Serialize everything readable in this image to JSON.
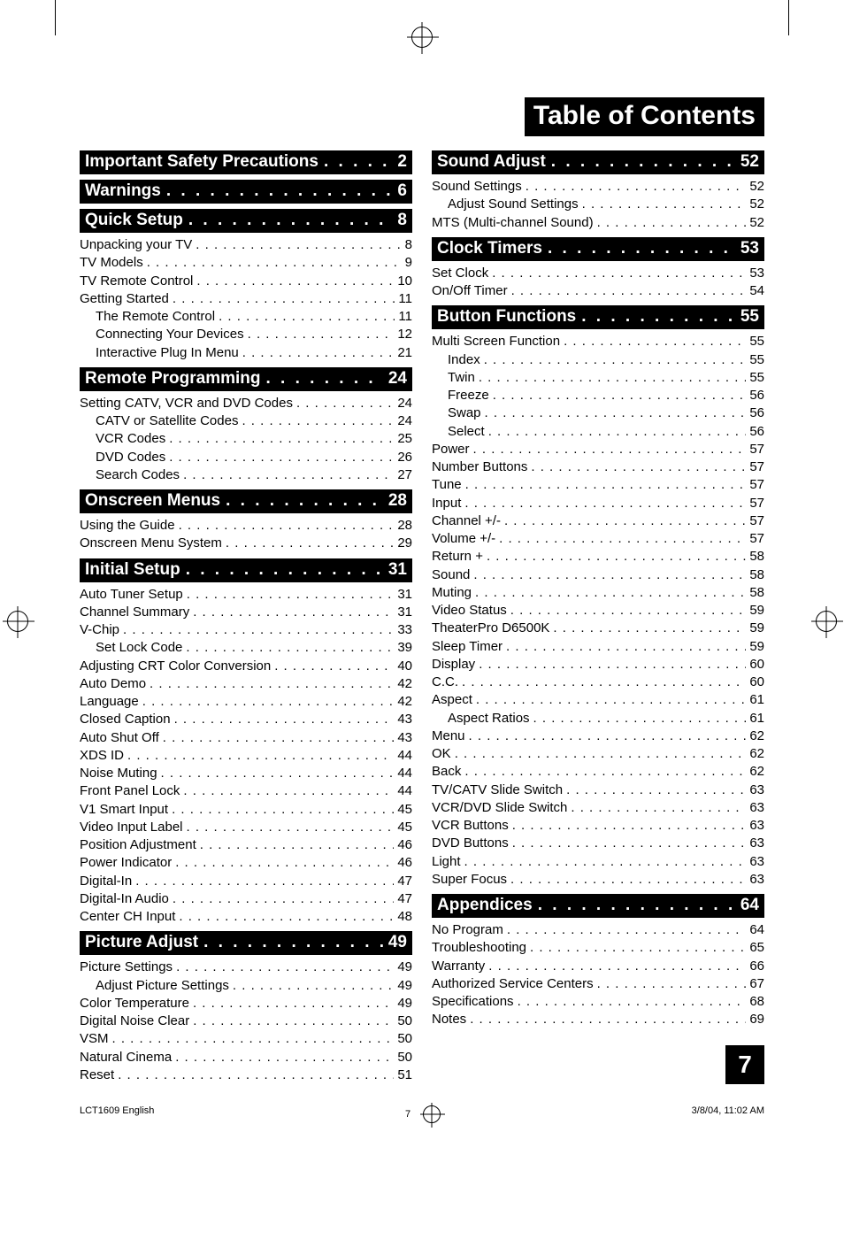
{
  "document_title": "Table of Contents",
  "page_number_box": "7",
  "footer": {
    "left": "LCT1609 English",
    "center_num": "7",
    "right": "3/8/04, 11:02 AM"
  },
  "dots_fill": ". . . . . . . . . . . . . . . . . . . . . . . . . . . . . . . . . . . . . . . . .",
  "head_dots": " .  .  .  .  .  .  .  .  .  .  .  .  .  .  .  .  .  .  .  . ",
  "left_sections": [
    {
      "title": "Important Safety Precautions",
      "page": "2",
      "items": []
    },
    {
      "title": "Warnings",
      "page": "6",
      "items": []
    },
    {
      "title": "Quick Setup",
      "page": "8",
      "items": [
        {
          "label": "Unpacking your TV",
          "page": "8",
          "indent": 0
        },
        {
          "label": "TV Models",
          "page": "9",
          "indent": 0
        },
        {
          "label": "TV Remote Control",
          "page": "10",
          "indent": 0
        },
        {
          "label": "Getting Started",
          "page": "11",
          "indent": 0
        },
        {
          "label": "The Remote Control",
          "page": "11",
          "indent": 1
        },
        {
          "label": "Connecting Your Devices",
          "page": "12",
          "indent": 1
        },
        {
          "label": "Interactive Plug In Menu",
          "page": "21",
          "indent": 1
        }
      ]
    },
    {
      "title": "Remote Programming",
      "page": "24",
      "items": [
        {
          "label": "Setting CATV, VCR and DVD Codes",
          "page": "24",
          "indent": 0
        },
        {
          "label": "CATV or Satellite Codes",
          "page": "24",
          "indent": 1
        },
        {
          "label": "VCR Codes",
          "page": "25",
          "indent": 1
        },
        {
          "label": "DVD Codes",
          "page": "26",
          "indent": 1
        },
        {
          "label": "Search Codes",
          "page": "27",
          "indent": 1
        }
      ]
    },
    {
      "title": "Onscreen Menus",
      "page": "28",
      "items": [
        {
          "label": "Using the Guide",
          "page": "28",
          "indent": 0
        },
        {
          "label": "Onscreen Menu System",
          "page": "29",
          "indent": 0
        }
      ]
    },
    {
      "title": "Initial Setup",
      "page": "31",
      "items": [
        {
          "label": "Auto Tuner Setup",
          "page": "31",
          "indent": 0
        },
        {
          "label": "Channel Summary",
          "page": "31",
          "indent": 0
        },
        {
          "label": "V-Chip",
          "page": "33",
          "indent": 0
        },
        {
          "label": "Set Lock Code",
          "page": "39",
          "indent": 1
        },
        {
          "label": "Adjusting CRT Color Conversion",
          "page": "40",
          "indent": 0
        },
        {
          "label": "Auto Demo",
          "page": "42",
          "indent": 0
        },
        {
          "label": "Language",
          "page": "42",
          "indent": 0
        },
        {
          "label": "Closed Caption",
          "page": "43",
          "indent": 0
        },
        {
          "label": "Auto Shut Off",
          "page": "43",
          "indent": 0
        },
        {
          "label": "XDS ID",
          "page": "44",
          "indent": 0
        },
        {
          "label": "Noise Muting",
          "page": "44",
          "indent": 0
        },
        {
          "label": "Front Panel Lock",
          "page": "44",
          "indent": 0
        },
        {
          "label": "V1 Smart Input",
          "page": "45",
          "indent": 0
        },
        {
          "label": "Video Input Label",
          "page": "45",
          "indent": 0
        },
        {
          "label": "Position Adjustment",
          "page": "46",
          "indent": 0
        },
        {
          "label": "Power Indicator",
          "page": "46",
          "indent": 0
        },
        {
          "label": "Digital-In",
          "page": "47",
          "indent": 0
        },
        {
          "label": "Digital-In Audio",
          "page": "47",
          "indent": 0
        },
        {
          "label": "Center CH Input",
          "page": "48",
          "indent": 0
        }
      ]
    },
    {
      "title": "Picture Adjust",
      "page": "49",
      "items": [
        {
          "label": "Picture Settings",
          "page": "49",
          "indent": 0
        },
        {
          "label": "Adjust Picture Settings",
          "page": "49",
          "indent": 1
        },
        {
          "label": "Color Temperature",
          "page": "49",
          "indent": 0
        },
        {
          "label": "Digital Noise Clear",
          "page": "50",
          "indent": 0
        },
        {
          "label": "VSM",
          "page": "50",
          "indent": 0
        },
        {
          "label": "Natural Cinema",
          "page": "50",
          "indent": 0
        },
        {
          "label": "Reset",
          "page": "51",
          "indent": 0
        }
      ]
    }
  ],
  "right_sections": [
    {
      "title": "Sound Adjust",
      "page": "52",
      "items": [
        {
          "label": "Sound Settings",
          "page": "52",
          "indent": 0
        },
        {
          "label": "Adjust Sound Settings",
          "page": "52",
          "indent": 1
        },
        {
          "label": "MTS (Multi-channel Sound)",
          "page": "52",
          "indent": 0
        }
      ]
    },
    {
      "title": "Clock Timers",
      "page": "53",
      "items": [
        {
          "label": "Set Clock",
          "page": "53",
          "indent": 0
        },
        {
          "label": "On/Off Timer",
          "page": "54",
          "indent": 0
        }
      ]
    },
    {
      "title": "Button Functions",
      "page": "55",
      "items": [
        {
          "label": "Multi Screen Function",
          "page": "55",
          "indent": 0
        },
        {
          "label": "Index",
          "page": "55",
          "indent": 1
        },
        {
          "label": "Twin",
          "page": "55",
          "indent": 1
        },
        {
          "label": "Freeze",
          "page": "56",
          "indent": 1
        },
        {
          "label": "Swap",
          "page": "56",
          "indent": 1
        },
        {
          "label": "Select",
          "page": "56",
          "indent": 1
        },
        {
          "label": "Power",
          "page": "57",
          "indent": 0
        },
        {
          "label": "Number Buttons",
          "page": "57",
          "indent": 0
        },
        {
          "label": "Tune",
          "page": "57",
          "indent": 0
        },
        {
          "label": "Input",
          "page": "57",
          "indent": 0
        },
        {
          "label": "Channel +/-",
          "page": "57",
          "indent": 0
        },
        {
          "label": "Volume +/-",
          "page": "57",
          "indent": 0
        },
        {
          "label": "Return +",
          "page": "58",
          "indent": 0
        },
        {
          "label": "Sound",
          "page": "58",
          "indent": 0
        },
        {
          "label": "Muting",
          "page": "58",
          "indent": 0
        },
        {
          "label": "Video Status",
          "page": "59",
          "indent": 0
        },
        {
          "label": "TheaterPro D6500K",
          "page": "59",
          "indent": 0
        },
        {
          "label": "Sleep Timer",
          "page": "59",
          "indent": 0
        },
        {
          "label": "Display",
          "page": "60",
          "indent": 0
        },
        {
          "label": "C.C.",
          "page": "60",
          "indent": 0
        },
        {
          "label": "Aspect",
          "page": "61",
          "indent": 0
        },
        {
          "label": "Aspect Ratios",
          "page": "61",
          "indent": 1
        },
        {
          "label": "Menu",
          "page": "62",
          "indent": 0
        },
        {
          "label": "OK",
          "page": "62",
          "indent": 0
        },
        {
          "label": "Back",
          "page": "62",
          "indent": 0
        },
        {
          "label": "TV/CATV Slide Switch",
          "page": "63",
          "indent": 0
        },
        {
          "label": "VCR/DVD Slide Switch",
          "page": "63",
          "indent": 0
        },
        {
          "label": "VCR Buttons",
          "page": "63",
          "indent": 0
        },
        {
          "label": "DVD Buttons",
          "page": "63",
          "indent": 0
        },
        {
          "label": "Light",
          "page": "63",
          "indent": 0
        },
        {
          "label": "Super Focus",
          "page": "63",
          "indent": 0
        }
      ]
    },
    {
      "title": "Appendices",
      "page": "64",
      "items": [
        {
          "label": "No Program",
          "page": "64",
          "indent": 0
        },
        {
          "label": "Troubleshooting",
          "page": "65",
          "indent": 0
        },
        {
          "label": "Warranty",
          "page": "66",
          "indent": 0
        },
        {
          "label": "Authorized Service Centers",
          "page": "67",
          "indent": 0
        },
        {
          "label": "Specifications",
          "page": "68",
          "indent": 0
        },
        {
          "label": "Notes",
          "page": "69",
          "indent": 0
        }
      ]
    }
  ]
}
